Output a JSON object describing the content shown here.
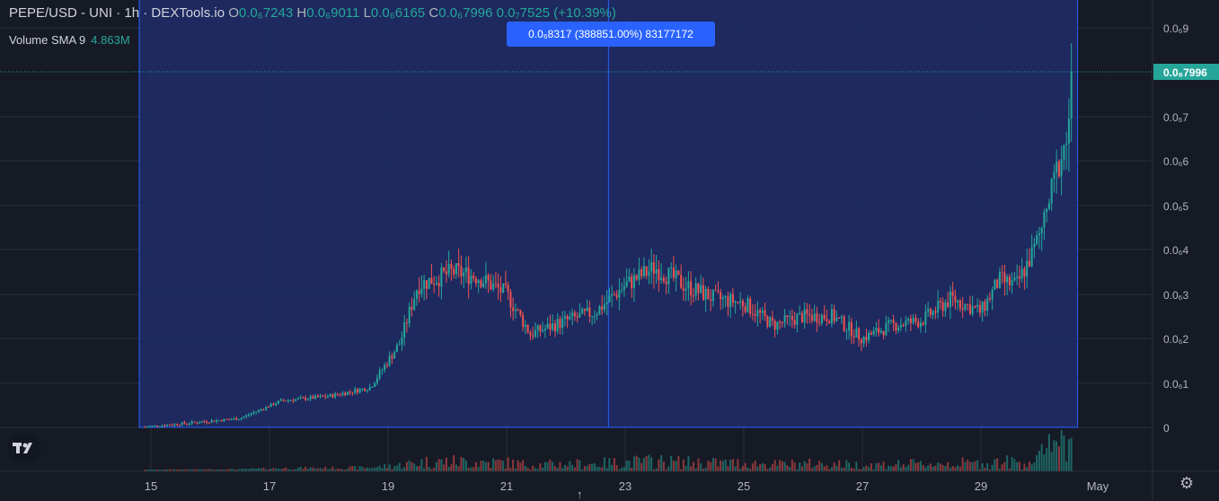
{
  "header": {
    "symbol": "PEPE/USD - UNI · 1h · DEXTools.io",
    "open_label": "O",
    "open": "0.0₆7243",
    "high_label": "H",
    "high": "0.0₆9011",
    "low_label": "L",
    "low": "0.0₆6165",
    "close_label": "C",
    "close": "0.0₆7996",
    "change": "0.0₇7525 (+10.39%)"
  },
  "volume_indicator": {
    "label": "Volume SMA 9",
    "value": "4.863M"
  },
  "measure_tooltip": "0.0₆8317 (388851.00%) 83177172",
  "current_price_label": "0.0₆7996",
  "colors": {
    "up": "#26a69a",
    "down": "#ef5350",
    "background": "#161a25",
    "range_fill": "#1f2d6a",
    "range_line": "#2962ff",
    "price_tag": "#26a69a"
  },
  "chart_data": {
    "type": "candlestick",
    "x_tick_labels": [
      "15",
      "17",
      "19",
      "21",
      "23",
      "25",
      "27",
      "29",
      "May"
    ],
    "y_tick_labels": [
      "0",
      "0.0₆1",
      "0.0₆2",
      "0.0₆3",
      "0.0₆4",
      "0.0₆5",
      "0.0₆6",
      "0.0₆7",
      "0.0₆9"
    ],
    "ylim": [
      0,
      9.5e-09
    ],
    "grid": true,
    "current_price": 7.996e-08,
    "key_points": {
      "x_days": [
        14.9,
        16.5,
        17.2,
        18.0,
        18.7,
        19.2,
        19.5,
        20.1,
        20.5,
        21.0,
        21.4,
        22.0,
        22.5,
        23.0,
        23.5,
        24.0,
        24.5,
        25.0,
        25.5,
        26.0,
        26.5,
        27.0,
        27.5,
        28.0,
        28.5,
        29.0,
        29.3,
        29.6,
        29.9,
        30.1,
        30.3,
        30.45,
        30.55
      ],
      "y_values_e9": [
        0.01,
        0.2,
        0.6,
        0.7,
        0.9,
        1.9,
        3.2,
        3.5,
        3.4,
        3.0,
        2.1,
        2.4,
        2.6,
        3.2,
        3.6,
        3.2,
        2.9,
        2.8,
        2.3,
        2.5,
        2.5,
        2.0,
        2.3,
        2.4,
        2.9,
        2.6,
        3.3,
        3.2,
        4.0,
        4.8,
        5.9,
        6.5,
        8.0
      ]
    },
    "measure_range": {
      "from_x_day": 14.85,
      "to_x_day": 30.6,
      "from_price": 0,
      "to_price": 8.317e-08,
      "percent_change": "388851.00%",
      "bars": "83177172"
    }
  }
}
